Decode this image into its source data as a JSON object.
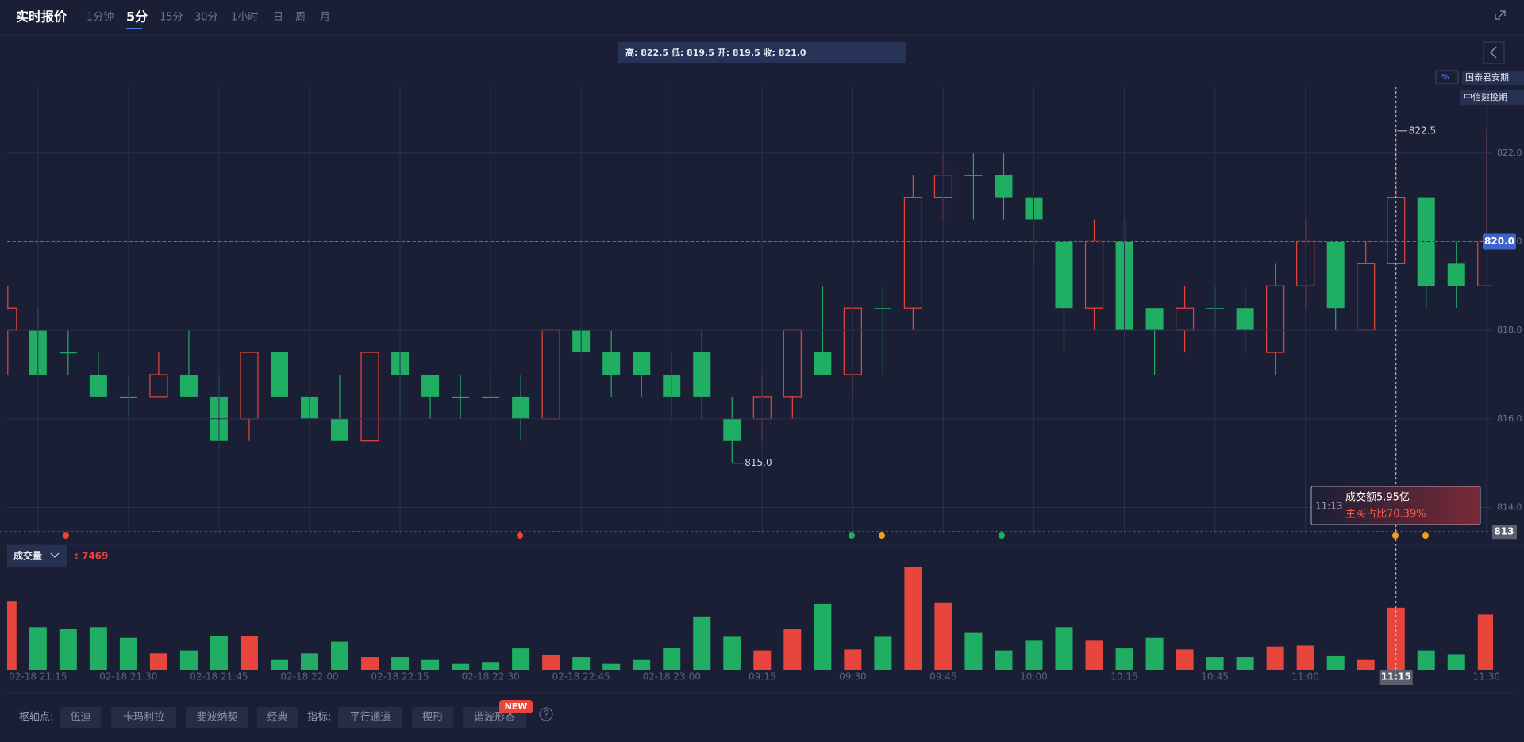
{
  "header": {
    "title": "实时报价",
    "intervals": [
      "1分钟",
      "5分",
      "15分",
      "30分",
      "1小时",
      "日",
      "周",
      "月"
    ],
    "active_interval": "5分",
    "ohlc_info": "高: 822.5 低: 819.5 开: 819.5 收: 821.0",
    "percent_icon": "%",
    "brokers": [
      "国泰君安期",
      "中信建投期"
    ]
  },
  "chart_data": [
    {
      "type": "candlestick",
      "categories": [
        null,
        "02-18 21:15",
        null,
        null,
        "02-18 21:30",
        null,
        null,
        "02-18 21:45",
        null,
        null,
        "02-18 22:00",
        null,
        null,
        "02-18 22:15",
        null,
        null,
        "02-18 22:30",
        null,
        null,
        "02-18 22:45",
        null,
        null,
        "02-18 23:00",
        null,
        null,
        "09:15",
        null,
        null,
        "09:30",
        null,
        null,
        "09:45",
        null,
        null,
        "10:00",
        null,
        null,
        "10:15",
        null,
        null,
        "10:45",
        null,
        null,
        "11:00",
        null,
        null,
        "11:15",
        null,
        null,
        "11:30"
      ],
      "open": [
        818,
        818,
        817.5,
        817,
        816.5,
        816.5,
        817,
        816.5,
        816,
        817.5,
        816.5,
        816,
        815.5,
        817.5,
        817,
        816.5,
        816.5,
        816.5,
        816,
        818,
        817.5,
        817.5,
        817,
        817.5,
        816,
        816,
        816.5,
        817.5,
        817,
        818.5,
        818.5,
        821,
        821.5,
        821.5,
        821,
        820,
        818.5,
        820,
        818.5,
        818,
        818.5,
        818.5,
        817.5,
        819,
        820,
        818,
        819.5,
        821,
        819.5,
        819
      ],
      "high": [
        819,
        818.5,
        818,
        817.5,
        817,
        817.5,
        818,
        817,
        817.5,
        817.5,
        816.5,
        817,
        817.5,
        817.5,
        817,
        817,
        817,
        817,
        818,
        818,
        818,
        817.5,
        817.5,
        818,
        816.5,
        817,
        818,
        819,
        818.5,
        819,
        821.5,
        822,
        822,
        822,
        821,
        820,
        820.5,
        820.5,
        818.5,
        819,
        819,
        819,
        819.5,
        820.5,
        820,
        820,
        822.5,
        821,
        820,
        822.5
      ],
      "low": [
        817,
        817,
        817,
        816.5,
        816,
        816.5,
        816.5,
        815.5,
        815.5,
        816.5,
        816,
        815.5,
        815.5,
        816,
        816,
        816,
        816.5,
        815.5,
        816,
        817.5,
        816.5,
        816.5,
        816,
        816,
        815,
        815.5,
        816,
        817,
        816.5,
        817,
        818,
        820.5,
        820.5,
        820.5,
        819.5,
        817.5,
        818,
        818,
        817,
        817.5,
        818,
        817.5,
        817,
        818.5,
        818,
        818,
        819.5,
        818.5,
        818.5,
        819
      ],
      "close": [
        818.5,
        817,
        817.5,
        816.5,
        816.5,
        817,
        816.5,
        815.5,
        817.5,
        816.5,
        816,
        815.5,
        817.5,
        817,
        816.5,
        816.5,
        816.5,
        816,
        818,
        817.5,
        817,
        817,
        816.5,
        816.5,
        815.5,
        816.5,
        818,
        817,
        818.5,
        818.5,
        821,
        821.5,
        821.5,
        821,
        820.5,
        818.5,
        820,
        818,
        818,
        818.5,
        818.5,
        818,
        819,
        820,
        818.5,
        819.5,
        821,
        819,
        819,
        820
      ],
      "ylim": [
        813.4,
        823.5
      ],
      "yticks": [
        {
          "value": 814,
          "label": "814.0"
        },
        {
          "value": 816,
          "label": "816.0"
        },
        {
          "value": 818,
          "label": "818.0"
        },
        {
          "value": 820,
          "label": "820.0"
        },
        {
          "value": 822,
          "label": "822.0"
        }
      ],
      "grid": true,
      "up_color": "#e8453c",
      "down_color": "#1fae63",
      "last_price": {
        "value": 820,
        "label": "820.0"
      },
      "marker_line": {
        "value": 813.45,
        "label": "813"
      },
      "high_label": "822.5",
      "low_label": "815.0",
      "highlight_category": "11:15"
    },
    {
      "type": "bar",
      "title": "成交量",
      "values": [
        8290,
        5130,
        4900,
        5130,
        3850,
        1980,
        2330,
        4080,
        4080,
        1170,
        1980,
        3380,
        1520,
        1520,
        1170,
        700,
        930,
        2570,
        1750,
        1520,
        700,
        1170,
        2680,
        6420,
        3970,
        2330,
        4900,
        7940,
        2450,
        3970,
        12370,
        8050,
        4430,
        2330,
        3500,
        5130,
        3500,
        2570,
        3850,
        2450,
        1520,
        1520,
        2800,
        2920,
        1630,
        1170,
        7469,
        2330,
        1870,
        6650
      ],
      "value_labels": [
        null,
        null,
        null,
        null,
        null,
        null,
        null,
        null,
        null,
        null,
        null,
        null,
        null,
        null,
        null,
        null,
        null,
        null,
        null,
        null,
        null,
        null,
        null,
        null,
        null,
        null,
        null,
        null,
        null,
        null,
        null,
        null,
        null,
        null,
        null,
        null,
        null,
        null,
        null,
        null,
        null,
        null,
        null,
        null,
        null,
        null,
        ": 7469",
        null,
        null,
        null
      ],
      "ylim": [
        0,
        15000
      ],
      "up_color": "#e8453c",
      "down_color": "#1fae63"
    }
  ],
  "tooltip": {
    "time": "11:13",
    "amount": "成交额5.95亿",
    "ratio": "主买占比70.39%"
  },
  "toolbar": {
    "pivot_label": "枢轴点:",
    "pivots": [
      "伍迪",
      "卡玛利拉",
      "斐波纳契",
      "经典"
    ],
    "indicator_label": "指标:",
    "indicators": [
      "平行通道",
      "楔形",
      "谐波形态"
    ],
    "badge": "NEW"
  }
}
